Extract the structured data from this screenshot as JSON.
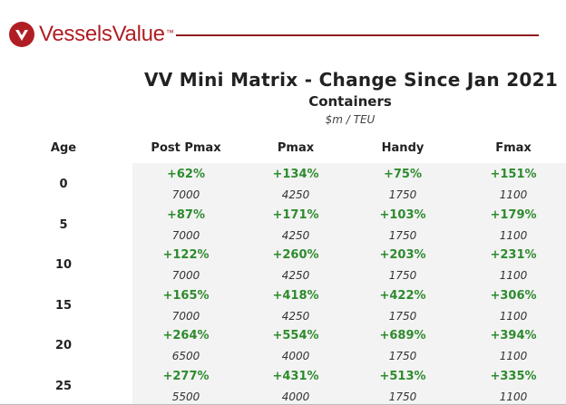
{
  "brand": {
    "name": "VesselsValue",
    "tm": "™",
    "color": "#b01e24"
  },
  "title": "VV Mini Matrix - Change Since Jan 2021",
  "subtitle": "Containers",
  "units": "$m / TEU",
  "columns": [
    "Age",
    "Post Pmax",
    "Pmax",
    "Handy",
    "Fmax"
  ],
  "colors": {
    "positive": "#2e8b2e",
    "cell_bg": "#f3f3f3"
  },
  "rows": [
    {
      "age": "0",
      "cells": [
        {
          "pct": "+62%",
          "teu": "7000"
        },
        {
          "pct": "+134%",
          "teu": "4250"
        },
        {
          "pct": "+75%",
          "teu": "1750"
        },
        {
          "pct": "+151%",
          "teu": "1100"
        }
      ]
    },
    {
      "age": "5",
      "cells": [
        {
          "pct": "+87%",
          "teu": "7000"
        },
        {
          "pct": "+171%",
          "teu": "4250"
        },
        {
          "pct": "+103%",
          "teu": "1750"
        },
        {
          "pct": "+179%",
          "teu": "1100"
        }
      ]
    },
    {
      "age": "10",
      "cells": [
        {
          "pct": "+122%",
          "teu": "7000"
        },
        {
          "pct": "+260%",
          "teu": "4250"
        },
        {
          "pct": "+203%",
          "teu": "1750"
        },
        {
          "pct": "+231%",
          "teu": "1100"
        }
      ]
    },
    {
      "age": "15",
      "cells": [
        {
          "pct": "+165%",
          "teu": "7000"
        },
        {
          "pct": "+418%",
          "teu": "4250"
        },
        {
          "pct": "+422%",
          "teu": "1750"
        },
        {
          "pct": "+306%",
          "teu": "1100"
        }
      ]
    },
    {
      "age": "20",
      "cells": [
        {
          "pct": "+264%",
          "teu": "6500"
        },
        {
          "pct": "+554%",
          "teu": "4000"
        },
        {
          "pct": "+689%",
          "teu": "1750"
        },
        {
          "pct": "+394%",
          "teu": "1100"
        }
      ]
    },
    {
      "age": "25",
      "cells": [
        {
          "pct": "+277%",
          "teu": "5500"
        },
        {
          "pct": "+431%",
          "teu": "4000"
        },
        {
          "pct": "+513%",
          "teu": "1750"
        },
        {
          "pct": "+335%",
          "teu": "1100"
        }
      ]
    }
  ]
}
